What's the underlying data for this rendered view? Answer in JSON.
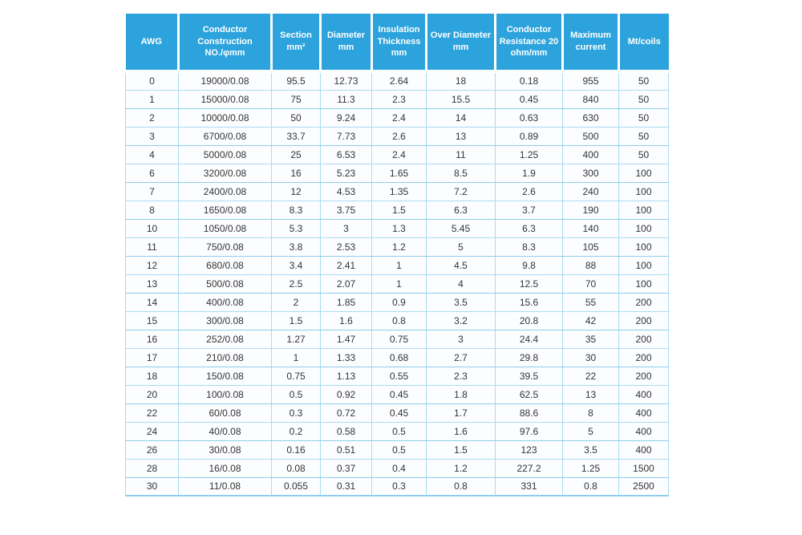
{
  "page": {
    "background": "#ffffff"
  },
  "colors": {
    "header_bg": "#2ca3dc",
    "header_text": "#ffffff",
    "row_bg": "#fcfdff",
    "border_light": "#aadcf2",
    "border_strong": "#8fcdec",
    "cell_text": "#333333"
  },
  "table": {
    "columns": [
      {
        "id": "awg",
        "label": "AWG"
      },
      {
        "id": "conductor-construction",
        "label": "Conductor\nConstruction\nNO./φmm"
      },
      {
        "id": "section",
        "label": "Section\nmm²"
      },
      {
        "id": "diameter",
        "label": "Diameter\nmm"
      },
      {
        "id": "insulation-thickness",
        "label": "Insulation\nThickness\nmm"
      },
      {
        "id": "over-diameter",
        "label": "Over Diameter\nmm"
      },
      {
        "id": "conductor-resistance",
        "label": "Conductor\nResistance 20\nohm/mm"
      },
      {
        "id": "maximum-current",
        "label": "Maximum\ncurrent"
      },
      {
        "id": "mt-coils",
        "label": "Mt/coils"
      }
    ]
  },
  "chart_data": {
    "type": "table",
    "title": "AWG wire specification table",
    "columns": [
      "AWG",
      "Conductor Construction NO./φmm",
      "Section mm²",
      "Diameter mm",
      "Insulation Thickness mm",
      "Over Diameter mm",
      "Conductor Resistance 20 ohm/mm",
      "Maximum current",
      "Mt/coils"
    ],
    "rows": [
      [
        "0",
        "19000/0.08",
        "95.5",
        "12.73",
        "2.64",
        "18",
        "0.18",
        "955",
        "50"
      ],
      [
        "1",
        "15000/0.08",
        "75",
        "11.3",
        "2.3",
        "15.5",
        "0.45",
        "840",
        "50"
      ],
      [
        "2",
        "10000/0.08",
        "50",
        "9.24",
        "2.4",
        "14",
        "0.63",
        "630",
        "50"
      ],
      [
        "3",
        "6700/0.08",
        "33.7",
        "7.73",
        "2.6",
        "13",
        "0.89",
        "500",
        "50"
      ],
      [
        "4",
        "5000/0.08",
        "25",
        "6.53",
        "2.4",
        "11",
        "1.25",
        "400",
        "50"
      ],
      [
        "6",
        "3200/0.08",
        "16",
        "5.23",
        "1.65",
        "8.5",
        "1.9",
        "300",
        "100"
      ],
      [
        "7",
        "2400/0.08",
        "12",
        "4.53",
        "1.35",
        "7.2",
        "2.6",
        "240",
        "100"
      ],
      [
        "8",
        "1650/0.08",
        "8.3",
        "3.75",
        "1.5",
        "6.3",
        "3.7",
        "190",
        "100"
      ],
      [
        "10",
        "1050/0.08",
        "5.3",
        "3",
        "1.3",
        "5.45",
        "6.3",
        "140",
        "100"
      ],
      [
        "11",
        "750/0.08",
        "3.8",
        "2.53",
        "1.2",
        "5",
        "8.3",
        "105",
        "100"
      ],
      [
        "12",
        "680/0.08",
        "3.4",
        "2.41",
        "1",
        "4.5",
        "9.8",
        "88",
        "100"
      ],
      [
        "13",
        "500/0.08",
        "2.5",
        "2.07",
        "1",
        "4",
        "12.5",
        "70",
        "100"
      ],
      [
        "14",
        "400/0.08",
        "2",
        "1.85",
        "0.9",
        "3.5",
        "15.6",
        "55",
        "200"
      ],
      [
        "15",
        "300/0.08",
        "1.5",
        "1.6",
        "0.8",
        "3.2",
        "20.8",
        "42",
        "200"
      ],
      [
        "16",
        "252/0.08",
        "1.27",
        "1.47",
        "0.75",
        "3",
        "24.4",
        "35",
        "200"
      ],
      [
        "17",
        "210/0.08",
        "1",
        "1.33",
        "0.68",
        "2.7",
        "29.8",
        "30",
        "200"
      ],
      [
        "18",
        "150/0.08",
        "0.75",
        "1.13",
        "0.55",
        "2.3",
        "39.5",
        "22",
        "200"
      ],
      [
        "20",
        "100/0.08",
        "0.5",
        "0.92",
        "0.45",
        "1.8",
        "62.5",
        "13",
        "400"
      ],
      [
        "22",
        "60/0.08",
        "0.3",
        "0.72",
        "0.45",
        "1.7",
        "88.6",
        "8",
        "400"
      ],
      [
        "24",
        "40/0.08",
        "0.2",
        "0.58",
        "0.5",
        "1.6",
        "97.6",
        "5",
        "400"
      ],
      [
        "26",
        "30/0.08",
        "0.16",
        "0.51",
        "0.5",
        "1.5",
        "123",
        "3.5",
        "400"
      ],
      [
        "28",
        "16/0.08",
        "0.08",
        "0.37",
        "0.4",
        "1.2",
        "227.2",
        "1.25",
        "1500"
      ],
      [
        "30",
        "11/0.08",
        "0.055",
        "0.31",
        "0.3",
        "0.8",
        "331",
        "0.8",
        "2500"
      ]
    ]
  }
}
